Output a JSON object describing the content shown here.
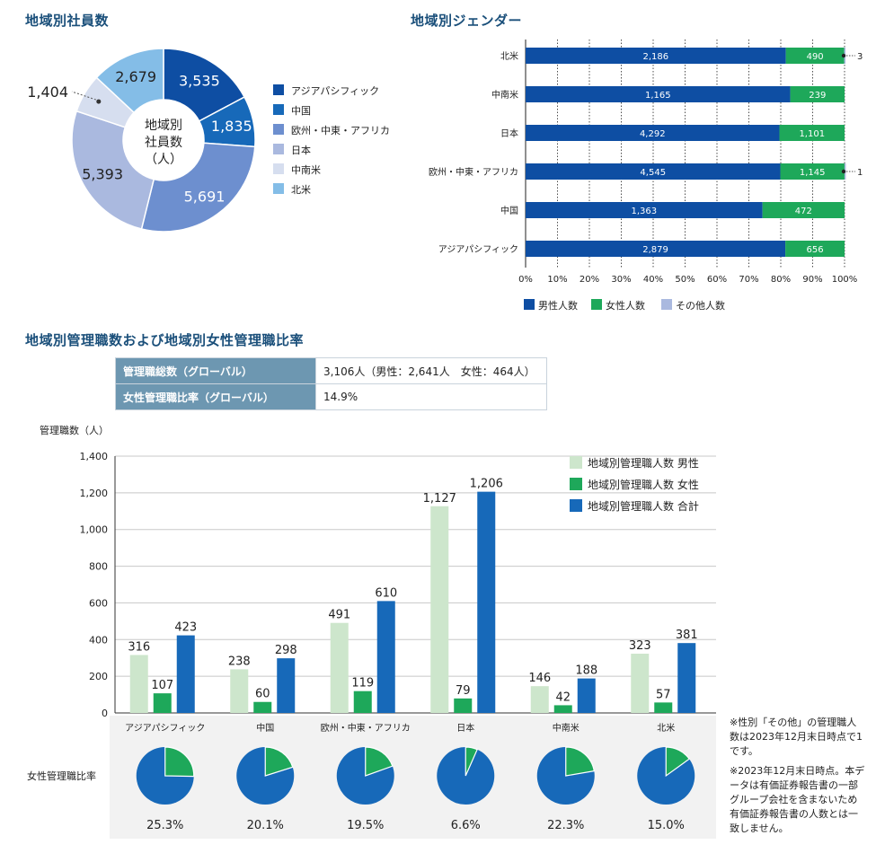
{
  "titles": {
    "employees": "地域別社員数",
    "gender": "地域別ジェンダー",
    "managers": "地域別管理職数および地域別女性管理職比率"
  },
  "donut": {
    "center_lines": [
      "地域別",
      "社員数",
      "（人）"
    ],
    "legend": [
      "アジアパシフィック",
      "中国",
      "欧州・中東・アフリカ",
      "日本",
      "中南米",
      "北米"
    ],
    "labels": [
      "3,535",
      "1,835",
      "5,691",
      "5,393",
      "1,404",
      "2,679"
    ],
    "colors": [
      "#0e4ea3",
      "#1769b9",
      "#6d8fcf",
      "#aab9df",
      "#d6deef",
      "#84bde7"
    ]
  },
  "gender": {
    "rows": [
      "北米",
      "中南米",
      "日本",
      "欧州・中東・アフリカ",
      "中国",
      "アジアパシフィック"
    ],
    "male_labels": [
      "2,186",
      "1,165",
      "4,292",
      "4,545",
      "1,363",
      "2,879"
    ],
    "female_labels": [
      "490",
      "239",
      "1,101",
      "1,145",
      "472",
      "656"
    ],
    "other_labels": [
      "3",
      "",
      "",
      "1",
      "",
      ""
    ],
    "ticks": [
      "0%",
      "10%",
      "20%",
      "30%",
      "40%",
      "50%",
      "60%",
      "70%",
      "80%",
      "90%",
      "100%"
    ],
    "legend": [
      "男性人数",
      "女性人数",
      "その他人数"
    ],
    "colors": {
      "male": "#0e4ea3",
      "female": "#1ea85a",
      "other": "#aab9df"
    }
  },
  "summary": [
    {
      "label": "管理職総数（グローバル）",
      "value": "3,106人（男性：2,641人　女性：464人）"
    },
    {
      "label": "女性管理職比率（グローバル）",
      "value": "14.9%"
    }
  ],
  "managers": {
    "ylabel": "管理職数（人）",
    "yticks": [
      "0",
      "200",
      "400",
      "600",
      "800",
      "1,000",
      "1,200",
      "1,400"
    ],
    "legend": [
      "地域別管理職人数 男性",
      "地域別管理職人数 女性",
      "地域別管理職人数 合計"
    ],
    "colors": {
      "male": "#cde6cc",
      "female": "#1ea85a",
      "total": "#1769b9"
    },
    "categories": [
      "アジアパシフィック",
      "中国",
      "欧州・中東・アフリカ",
      "日本",
      "中南米",
      "北米"
    ],
    "ratio_label": "女性管理職比率",
    "ratio_texts": [
      "25.3%",
      "20.1%",
      "19.5%",
      "6.6%",
      "22.3%",
      "15.0%"
    ]
  },
  "notes": [
    "※性別「その他」の管理職人数は2023年12月末日時点で1です。",
    "※2023年12月末日時点。本データは有価証券報告書の一部グループ会社を含まないため有価証券報告書の人数とは一致しません。"
  ],
  "chart_data": [
    {
      "type": "pie",
      "title": "地域別社員数",
      "categories": [
        "アジアパシフィック",
        "中国",
        "欧州・中東・アフリカ",
        "日本",
        "中南米",
        "北米"
      ],
      "values": [
        3535,
        1835,
        5691,
        5393,
        1404,
        2679
      ],
      "legend": "right"
    },
    {
      "type": "bar",
      "title": "地域別ジェンダー",
      "orientation": "horizontal",
      "stacked": "percent",
      "categories": [
        "北米",
        "中南米",
        "日本",
        "欧州・中東・アフリカ",
        "中国",
        "アジアパシフィック"
      ],
      "series": [
        {
          "name": "男性人数",
          "values": [
            2186,
            1165,
            4292,
            4545,
            1363,
            2879
          ]
        },
        {
          "name": "女性人数",
          "values": [
            490,
            239,
            1101,
            1145,
            472,
            656
          ]
        },
        {
          "name": "その他人数",
          "values": [
            3,
            0,
            0,
            1,
            0,
            0
          ]
        }
      ],
      "xlim": [
        0,
        100
      ],
      "legend": "bottom"
    },
    {
      "type": "bar",
      "title": "地域別管理職数および地域別女性管理職比率",
      "ylabel": "管理職数（人）",
      "ylim": [
        0,
        1400
      ],
      "categories": [
        "アジアパシフィック",
        "中国",
        "欧州・中東・アフリカ",
        "日本",
        "中南米",
        "北米"
      ],
      "series": [
        {
          "name": "地域別管理職人数 男性",
          "values": [
            316,
            238,
            491,
            1127,
            146,
            323
          ]
        },
        {
          "name": "地域別管理職人数 女性",
          "values": [
            107,
            60,
            119,
            79,
            42,
            57
          ]
        },
        {
          "name": "地域別管理職人数 合計",
          "values": [
            423,
            298,
            610,
            1206,
            188,
            381
          ]
        }
      ],
      "grid": true,
      "legend": "top-right"
    },
    {
      "type": "pie",
      "title": "女性管理職比率",
      "categories": [
        "アジアパシフィック",
        "中国",
        "欧州・中東・アフリカ",
        "日本",
        "中南米",
        "北米"
      ],
      "values": [
        25.3,
        20.1,
        19.5,
        6.6,
        22.3,
        15.0
      ]
    }
  ]
}
